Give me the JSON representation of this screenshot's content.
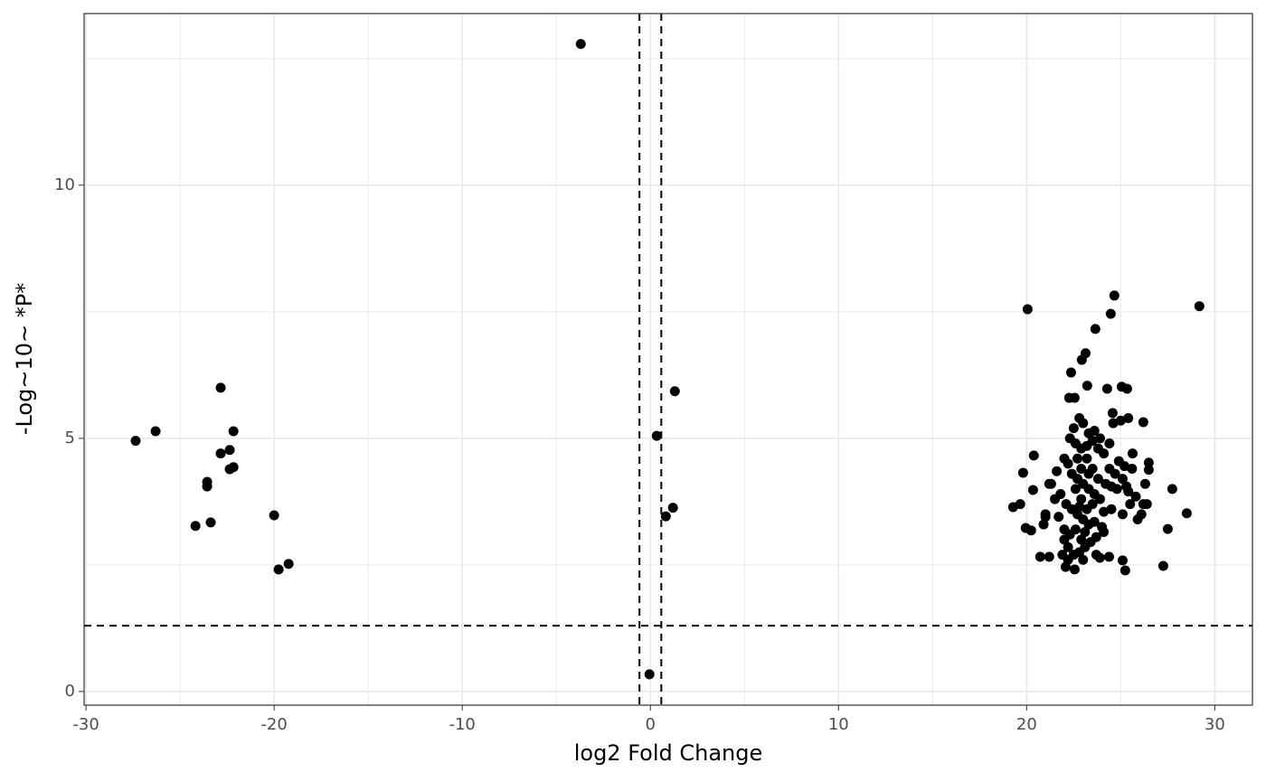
{
  "chart_data": {
    "type": "scatter",
    "xlabel": "log2 Fold Change",
    "ylabel": "-Log~10~ *P*",
    "xlim": [
      -30.1,
      32.0
    ],
    "ylim": [
      -0.27,
      13.39
    ],
    "xticks": [
      -30,
      -20,
      -10,
      0,
      10,
      20,
      30
    ],
    "yticks": [
      0,
      5,
      10
    ],
    "x_minor_grid": [
      -25,
      -15,
      -5,
      5,
      15,
      25
    ],
    "y_minor_grid": [
      2.5,
      7.5,
      12.5
    ],
    "grid": true,
    "vlines": [
      -0.58,
      0.58
    ],
    "hline": 1.3,
    "series": [
      {
        "color": "#000000",
        "x": [
          -27.36,
          -26.3,
          -22.84,
          -22.16,
          -22.84,
          -22.36,
          -22.36,
          -22.16,
          -23.56,
          -23.56,
          -24.18,
          -23.37,
          -20.0,
          -19.76,
          -19.23,
          -3.7,
          1.3,
          0.34,
          1.2,
          0.82,
          -0.05,
          20.05,
          29.18,
          24.66,
          24.47,
          23.65,
          23.13,
          22.93,
          22.36,
          23.22,
          24.28,
          25.05,
          25.34,
          22.26,
          22.55,
          26.2,
          24.57,
          20.38,
          19.81,
          19.28,
          19.66,
          19.95,
          20.24,
          20.34,
          27.74,
          28.51,
          27.5,
          27.26,
          26.49,
          26.49,
          26.39,
          25.63,
          25.24,
          25.1,
          22.55,
          22.07,
          20.72,
          21.2,
          23.89,
          24.38,
          23.7,
          22.5,
          22.8,
          23.0,
          23.3,
          23.6,
          22.3,
          22.6,
          22.9,
          23.2,
          23.5,
          23.8,
          24.4,
          24.6,
          25.0,
          25.4,
          24.9,
          25.2,
          25.6,
          24.7,
          25.1,
          24.8,
          25.3,
          25.8,
          26.2,
          25.9,
          26.1,
          25.1,
          24.5,
          24.1,
          23.9,
          23.6,
          23.3,
          23.0,
          22.7,
          22.4,
          22.2,
          22.0,
          21.6,
          21.3,
          21.5,
          21.8,
          22.1,
          22.4,
          22.7,
          23.0,
          23.3,
          23.6,
          24.0,
          24.1,
          23.7,
          23.4,
          23.1,
          22.8,
          22.5,
          22.2,
          22.0,
          22.3,
          22.6,
          22.9,
          23.2,
          23.5,
          22.9,
          22.6,
          22.9,
          23.2,
          23.5,
          23.8,
          24.2,
          24.4,
          24.1,
          23.9,
          22.7,
          21.0,
          20.9,
          21.0,
          21.2,
          21.7,
          22.0,
          22.2,
          23.0,
          21.9,
          23.3,
          22.8,
          23.1,
          24.5,
          25.4,
          26.3,
          25.5
        ],
        "values": [
          4.95,
          5.14,
          6.0,
          5.14,
          4.7,
          4.77,
          4.39,
          4.43,
          4.14,
          4.05,
          3.27,
          3.34,
          3.48,
          2.41,
          2.52,
          12.79,
          5.93,
          5.05,
          3.63,
          3.46,
          0.34,
          7.55,
          7.61,
          7.82,
          7.46,
          7.16,
          6.68,
          6.55,
          6.3,
          6.04,
          5.98,
          6.02,
          5.98,
          5.8,
          5.8,
          5.32,
          5.5,
          4.66,
          4.32,
          3.64,
          3.7,
          3.23,
          3.18,
          3.98,
          4.0,
          3.52,
          3.21,
          2.48,
          4.52,
          4.38,
          3.7,
          4.7,
          2.39,
          2.59,
          2.41,
          2.46,
          2.66,
          2.66,
          2.64,
          2.66,
          2.7,
          5.2,
          5.4,
          5.3,
          5.1,
          5.15,
          5.0,
          4.9,
          4.8,
          4.85,
          4.95,
          4.8,
          4.9,
          5.3,
          5.35,
          5.4,
          4.55,
          4.45,
          4.4,
          4.3,
          4.2,
          4.0,
          4.05,
          3.85,
          3.7,
          3.4,
          3.5,
          3.5,
          3.6,
          3.55,
          3.8,
          3.9,
          4.0,
          4.1,
          4.2,
          4.3,
          4.5,
          4.6,
          4.35,
          4.1,
          3.8,
          3.9,
          3.7,
          3.6,
          3.5,
          3.4,
          3.3,
          3.35,
          3.25,
          3.15,
          3.05,
          2.95,
          2.85,
          2.75,
          2.7,
          2.85,
          3.0,
          3.1,
          3.2,
          3.0,
          3.6,
          3.7,
          3.8,
          4.0,
          4.4,
          4.6,
          4.4,
          4.2,
          4.1,
          4.4,
          4.7,
          5.0,
          4.6,
          3.45,
          3.3,
          3.5,
          4.1,
          3.45,
          3.2,
          2.6,
          2.6,
          2.7,
          4.3,
          3.65,
          3.15,
          4.05,
          3.95,
          4.1,
          3.7
        ]
      }
    ]
  }
}
